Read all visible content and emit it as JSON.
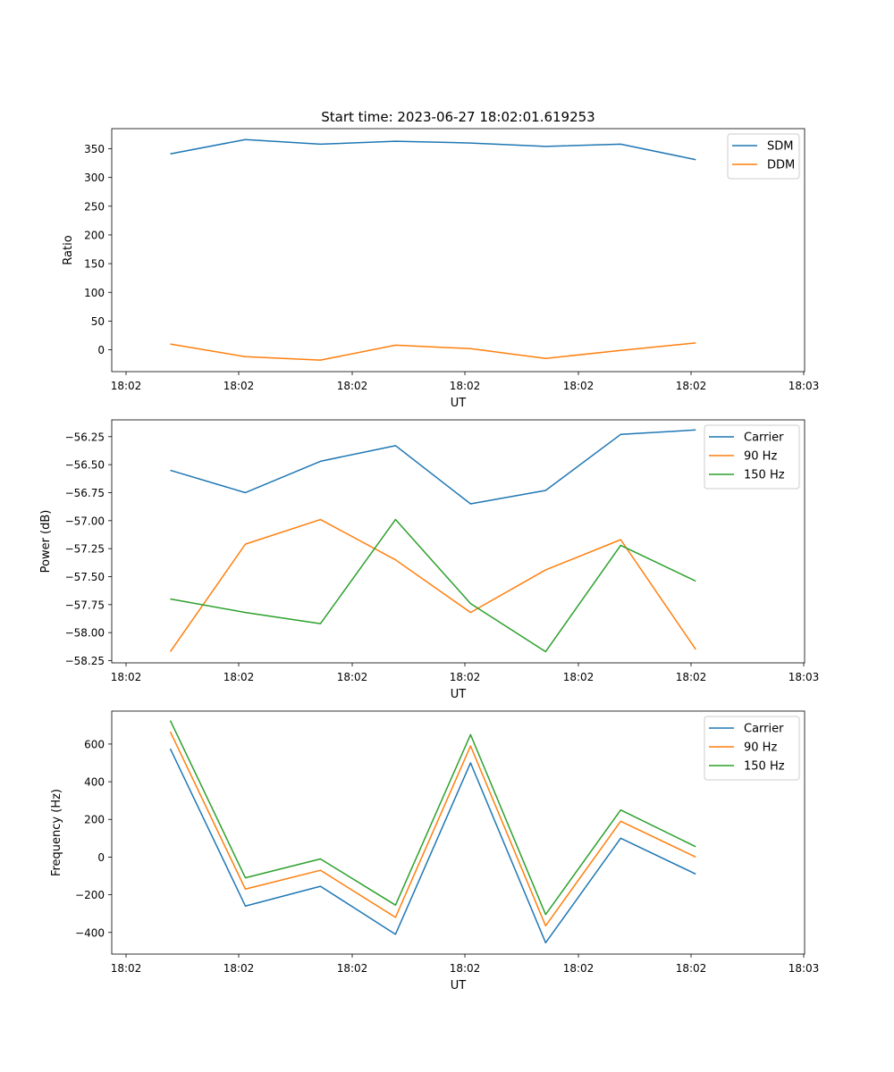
{
  "figure": {
    "title": "Start time: 2023-06-27 18:02:01.619253"
  },
  "chart_data": [
    {
      "type": "line",
      "xlabel": "UT",
      "ylabel": "Ratio",
      "x_tick_labels": [
        "18:02",
        "18:02",
        "18:02",
        "18:02",
        "18:02",
        "18:02",
        "18:03"
      ],
      "yticks": [
        0,
        50,
        100,
        150,
        200,
        250,
        300,
        350
      ],
      "y_tick_labels": [
        "0",
        "50",
        "100",
        "150",
        "200",
        "250",
        "300",
        "350"
      ],
      "ylim": [
        -38,
        385
      ],
      "x": [
        1,
        2,
        3,
        4,
        5,
        6,
        7,
        8
      ],
      "xlim": [
        0.22,
        9.45
      ],
      "legend": "top-right",
      "series": [
        {
          "name": "SDM",
          "color": "#1f77b4",
          "values": [
            341,
            366,
            358,
            363,
            360,
            354,
            358,
            331
          ]
        },
        {
          "name": "DDM",
          "color": "#ff7f0e",
          "values": [
            10,
            -12,
            -18,
            8,
            2,
            -15,
            -1,
            12
          ]
        }
      ]
    },
    {
      "type": "line",
      "xlabel": "UT",
      "ylabel": "Power (dB)",
      "x_tick_labels": [
        "18:02",
        "18:02",
        "18:02",
        "18:02",
        "18:02",
        "18:02",
        "18:03"
      ],
      "yticks": [
        -58.25,
        -58.0,
        -57.75,
        -57.5,
        -57.25,
        -57.0,
        -56.75,
        -56.5,
        -56.25
      ],
      "y_tick_labels": [
        "−58.25",
        "−58.00",
        "−57.75",
        "−57.50",
        "−57.25",
        "−57.00",
        "−56.75",
        "−56.50",
        "−56.25"
      ],
      "ylim": [
        -58.27,
        -56.1
      ],
      "x": [
        1,
        2,
        3,
        4,
        5,
        6,
        7,
        8
      ],
      "xlim": [
        0.22,
        9.45
      ],
      "legend": "top-right",
      "series": [
        {
          "name": "Carrier",
          "color": "#1f77b4",
          "values": [
            -56.55,
            -56.75,
            -56.47,
            -56.33,
            -56.85,
            -56.73,
            -56.23,
            -56.19
          ]
        },
        {
          "name": "90 Hz",
          "color": "#ff7f0e",
          "values": [
            -58.17,
            -57.21,
            -56.99,
            -57.35,
            -57.82,
            -57.44,
            -57.17,
            -58.15
          ]
        },
        {
          "name": "150 Hz",
          "color": "#2ca02c",
          "values": [
            -57.7,
            -57.82,
            -57.92,
            -56.99,
            -57.74,
            -58.17,
            -57.22,
            -57.54
          ]
        }
      ]
    },
    {
      "type": "line",
      "xlabel": "UT",
      "ylabel": "Frequency (Hz)",
      "x_tick_labels": [
        "18:02",
        "18:02",
        "18:02",
        "18:02",
        "18:02",
        "18:02",
        "18:03"
      ],
      "yticks": [
        -400,
        -200,
        0,
        200,
        400,
        600
      ],
      "y_tick_labels": [
        "−400",
        "−200",
        "0",
        "200",
        "400",
        "600"
      ],
      "ylim": [
        -515,
        775
      ],
      "x": [
        1,
        2,
        3,
        4,
        5,
        6,
        7,
        8
      ],
      "xlim": [
        0.22,
        9.45
      ],
      "legend": "top-right",
      "series": [
        {
          "name": "Carrier",
          "color": "#1f77b4",
          "values": [
            575,
            -260,
            -155,
            -410,
            500,
            -455,
            100,
            -90
          ]
        },
        {
          "name": "90 Hz",
          "color": "#ff7f0e",
          "values": [
            665,
            -170,
            -70,
            -320,
            590,
            -365,
            190,
            0
          ]
        },
        {
          "name": "150 Hz",
          "color": "#2ca02c",
          "values": [
            725,
            -110,
            -10,
            -255,
            650,
            -305,
            250,
            55
          ]
        }
      ]
    }
  ]
}
